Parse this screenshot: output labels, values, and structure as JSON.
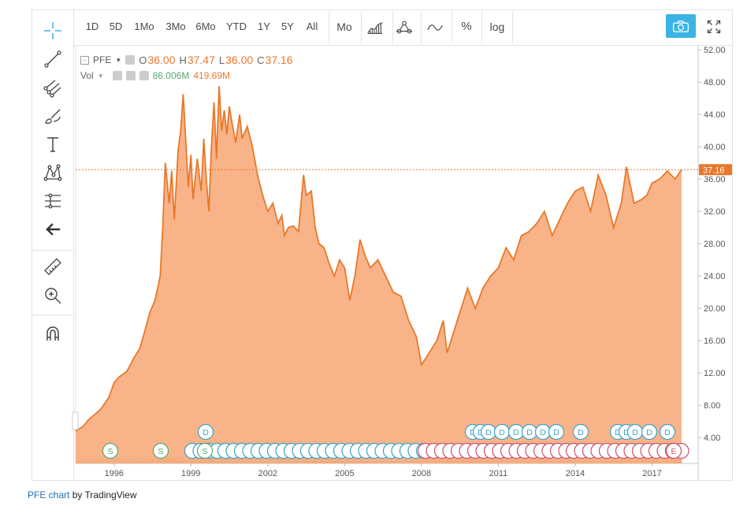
{
  "toolbar": {
    "timeframes": [
      "1D",
      "5D",
      "1Mo",
      "3Mo",
      "6Mo",
      "YTD",
      "1Y",
      "5Y",
      "All"
    ],
    "interval": "Mo",
    "percent": "%",
    "log": "log",
    "chart_type_icons": [
      "area-chart-icon",
      "indicators-icon",
      "compare-icon"
    ]
  },
  "left_tools": [
    "crosshair-icon",
    "trendline-icon",
    "pitchfork-icon",
    "brush-icon",
    "text-icon",
    "pattern-icon",
    "measure-lines-icon",
    "back-arrow-icon",
    "ruler-icon",
    "zoom-in-icon",
    "magnet-icon"
  ],
  "legend": {
    "symbol": "PFE",
    "open_label": "O",
    "open": "36.00",
    "high_label": "H",
    "high": "37.47",
    "low_label": "L",
    "low": "36.00",
    "close_label": "C",
    "close": "37.16",
    "vol_label": "Vol",
    "vol_value": "86.006M",
    "vol_ma": "419.69M"
  },
  "footer": {
    "prefix": "PFE chart",
    "suffix": " by TradingView"
  },
  "colors": {
    "area_line": "#e8782a",
    "area_fill": "#f9ad7e",
    "last_price": "#e8782a",
    "vol_up": "#8bc48a",
    "vol_down": "#e98a77",
    "split": "#53a86a",
    "dividend": "#3aa1c8",
    "earnings": "#c9506a",
    "camera_bg": "#3bb3e4"
  },
  "chart_data": {
    "type": "area",
    "symbol": "PFE",
    "x_ticks": [
      "1996",
      "1999",
      "2002",
      "2005",
      "2008",
      "2011",
      "2014",
      "2017"
    ],
    "y_ticks": [
      "4.00",
      "8.00",
      "12.00",
      "16.00",
      "20.00",
      "24.00",
      "28.00",
      "32.00",
      "36.00",
      "40.00",
      "44.00",
      "48.00",
      "52.00"
    ],
    "ylim": [
      0.8,
      52.6
    ],
    "xlim": [
      1994.5,
      2018.8
    ],
    "last_price": 37.16,
    "last_price_label": "37.16",
    "series": [
      {
        "x": [
          1994.5,
          1994.8,
          1995.0,
          1995.3,
          1995.5,
          1995.8,
          1996.0,
          1996.2,
          1996.5,
          1996.8,
          1997.0,
          1997.2,
          1997.4,
          1997.6,
          1997.8,
          1997.9,
          1998.0,
          1998.15,
          1998.25,
          1998.35,
          1998.5,
          1998.6,
          1998.7,
          1998.9,
          1999.0,
          1999.08,
          1999.25,
          1999.4,
          1999.5,
          1999.6,
          1999.7,
          1999.8,
          1999.9,
          2000.0,
          2000.1,
          2000.2,
          2000.3,
          2000.4,
          2000.5,
          2000.6,
          2000.75,
          2000.9,
          2001.0,
          2001.2,
          2001.4,
          2001.6,
          2001.8,
          2002.0,
          2002.2,
          2002.4,
          2002.55,
          2002.65,
          2002.8,
          2003.0,
          2003.2,
          2003.4,
          2003.5,
          2003.7,
          2003.85,
          2004.0,
          2004.2,
          2004.4,
          2004.6,
          2004.8,
          2005.0,
          2005.2,
          2005.4,
          2005.6,
          2005.8,
          2006.0,
          2006.3,
          2006.6,
          2006.9,
          2007.2,
          2007.5,
          2007.8,
          2008.0,
          2008.3,
          2008.6,
          2008.85,
          2009.0,
          2009.2,
          2009.5,
          2009.8,
          2010.1,
          2010.4,
          2010.7,
          2011.0,
          2011.3,
          2011.6,
          2011.9,
          2012.2,
          2012.5,
          2012.8,
          2013.1,
          2013.4,
          2013.7,
          2014.0,
          2014.3,
          2014.6,
          2014.9,
          2015.2,
          2015.5,
          2015.8,
          2016.0,
          2016.3,
          2016.6,
          2016.8,
          2017.0,
          2017.3,
          2017.6,
          2017.9,
          2018.15
        ],
        "y": [
          4.8,
          5.4,
          6.2,
          7.0,
          7.6,
          9.0,
          10.8,
          11.5,
          12.2,
          14.0,
          15.0,
          17.2,
          19.5,
          21.0,
          24.0,
          30.0,
          38.0,
          33.0,
          37.0,
          31.0,
          39.5,
          42.0,
          46.5,
          35.0,
          39.0,
          33.5,
          38.5,
          34.5,
          41.0,
          36.0,
          32.0,
          40.0,
          45.5,
          38.5,
          47.5,
          42.0,
          44.5,
          41.5,
          45.0,
          43.0,
          40.5,
          44.0,
          41.0,
          42.5,
          40.0,
          36.5,
          34.0,
          32.0,
          33.0,
          30.5,
          31.5,
          29.0,
          30.0,
          30.2,
          29.5,
          36.5,
          34.0,
          34.5,
          30.0,
          28.0,
          27.5,
          25.5,
          24.0,
          26.0,
          25.0,
          21.0,
          24.0,
          28.5,
          26.5,
          25.0,
          26.0,
          24.0,
          22.0,
          21.5,
          18.5,
          16.5,
          13.0,
          14.5,
          16.0,
          18.5,
          14.5,
          16.5,
          19.5,
          22.5,
          20.0,
          22.5,
          24.0,
          25.0,
          27.5,
          26.0,
          29.0,
          29.5,
          30.5,
          32.0,
          29.0,
          31.0,
          33.0,
          34.5,
          35.0,
          32.0,
          36.5,
          34.0,
          30.0,
          33.0,
          37.5,
          33.0,
          33.5,
          34.0,
          35.5,
          36.0,
          37.0,
          36.0,
          37.16
        ]
      }
    ],
    "volume_note": "monthly volume histogram at bottom",
    "event_markers": {
      "split_label": "S",
      "dividend_label": "D",
      "earnings_label": "E"
    }
  }
}
